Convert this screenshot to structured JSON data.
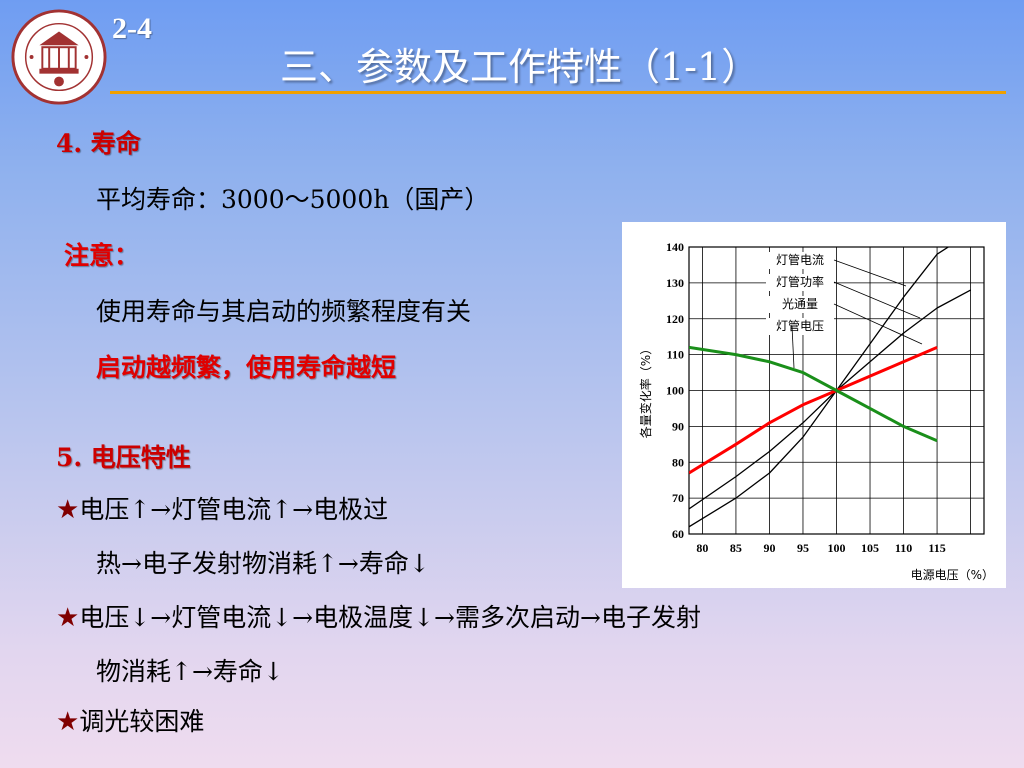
{
  "header": {
    "slide_number": "2-4",
    "title": "三、参数及工作特性（1-1）"
  },
  "section4": {
    "heading": "4. 寿命",
    "line1": "平均寿命：3000～5000h（国产）",
    "note_label": "注意：",
    "line2": "使用寿命与其启动的频繁程度有关",
    "line3": "启动越频繁，使用寿命越短"
  },
  "section5": {
    "heading": "5. 电压特性",
    "bullet1_line1": "电压↑→灯管电流↑→电极过",
    "bullet1_line2": "热→电子发射物消耗↑→寿命↓",
    "bullet2_line1": "电压↓→灯管电流↓→电极温度↓→需多次启动→电子发射",
    "bullet2_line2": "物消耗↑→寿命↓",
    "bullet3": "调光较困难",
    "star_symbol": "★"
  },
  "chart_data": {
    "type": "line",
    "xlabel": "电源电压（%）",
    "ylabel": "各量变化率（%）",
    "x_ticks": [
      "80",
      "85",
      "90",
      "95",
      "100",
      "105",
      "110",
      "115"
    ],
    "y_ticks": [
      "60",
      "70",
      "80",
      "90",
      "100",
      "110",
      "120",
      "130",
      "140"
    ],
    "xlim": [
      78,
      122
    ],
    "ylim": [
      60,
      140
    ],
    "grid": true,
    "legend_labels": [
      "灯管电流",
      "灯管功率",
      "光通量",
      "灯管电压"
    ],
    "series": [
      {
        "name": "灯管电流",
        "color": "#000000",
        "x": [
          78,
          85,
          90,
          95,
          100,
          105,
          110,
          115,
          120
        ],
        "y": [
          62,
          70,
          77,
          87,
          100,
          113,
          126,
          138,
          144
        ]
      },
      {
        "name": "灯管功率",
        "color": "#000000",
        "x": [
          78,
          85,
          90,
          95,
          100,
          105,
          110,
          115,
          120
        ],
        "y": [
          67,
          76,
          83,
          91,
          100,
          108,
          116,
          123,
          128
        ]
      },
      {
        "name": "光通量",
        "color": "#ff0000",
        "x": [
          78,
          85,
          90,
          95,
          100,
          105,
          110,
          115
        ],
        "y": [
          77,
          85,
          91,
          96,
          100,
          104,
          108,
          112
        ]
      },
      {
        "name": "灯管电压",
        "color": "#1a8f1a",
        "x": [
          78,
          85,
          90,
          95,
          100,
          105,
          110,
          115
        ],
        "y": [
          112,
          110,
          108,
          105,
          100,
          95,
          90,
          86
        ]
      }
    ]
  }
}
